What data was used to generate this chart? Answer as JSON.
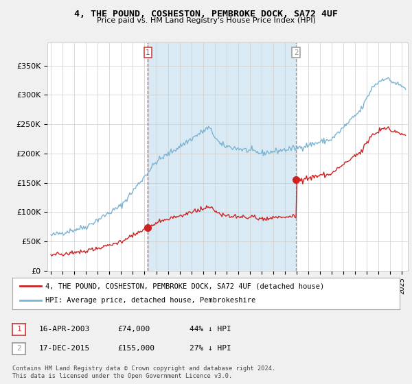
{
  "title": "4, THE POUND, COSHESTON, PEMBROKE DOCK, SA72 4UF",
  "subtitle": "Price paid vs. HM Land Registry's House Price Index (HPI)",
  "ylabel_ticks": [
    "£0",
    "£50K",
    "£100K",
    "£150K",
    "£200K",
    "£250K",
    "£300K",
    "£350K"
  ],
  "ytick_vals": [
    0,
    50000,
    100000,
    150000,
    200000,
    250000,
    300000,
    350000
  ],
  "ylim": [
    0,
    390000
  ],
  "xlim_start": 1994.7,
  "xlim_end": 2025.5,
  "hpi_color": "#7ab3d4",
  "hpi_fill_color": "#daeaf5",
  "price_color": "#cc2222",
  "vline1_color": "#cc3333",
  "vline2_color": "#999999",
  "bg_color": "#f0f0f0",
  "plot_bg_color": "#ffffff",
  "transaction1_x": 2003.29,
  "transaction1_y": 74000,
  "transaction2_x": 2015.96,
  "transaction2_y": 155000,
  "legend_line1": "4, THE POUND, COSHESTON, PEMBROKE DOCK, SA72 4UF (detached house)",
  "legend_line2": "HPI: Average price, detached house, Pembrokeshire",
  "annot1_date": "16-APR-2003",
  "annot1_price": "£74,000",
  "annot1_pct": "44% ↓ HPI",
  "annot2_date": "17-DEC-2015",
  "annot2_price": "£155,000",
  "annot2_pct": "27% ↓ HPI",
  "footer": "Contains HM Land Registry data © Crown copyright and database right 2024.\nThis data is licensed under the Open Government Licence v3.0.",
  "hpi_seed": 42,
  "hpi_noise_scale": 2500,
  "price_noise_scale": 1500
}
